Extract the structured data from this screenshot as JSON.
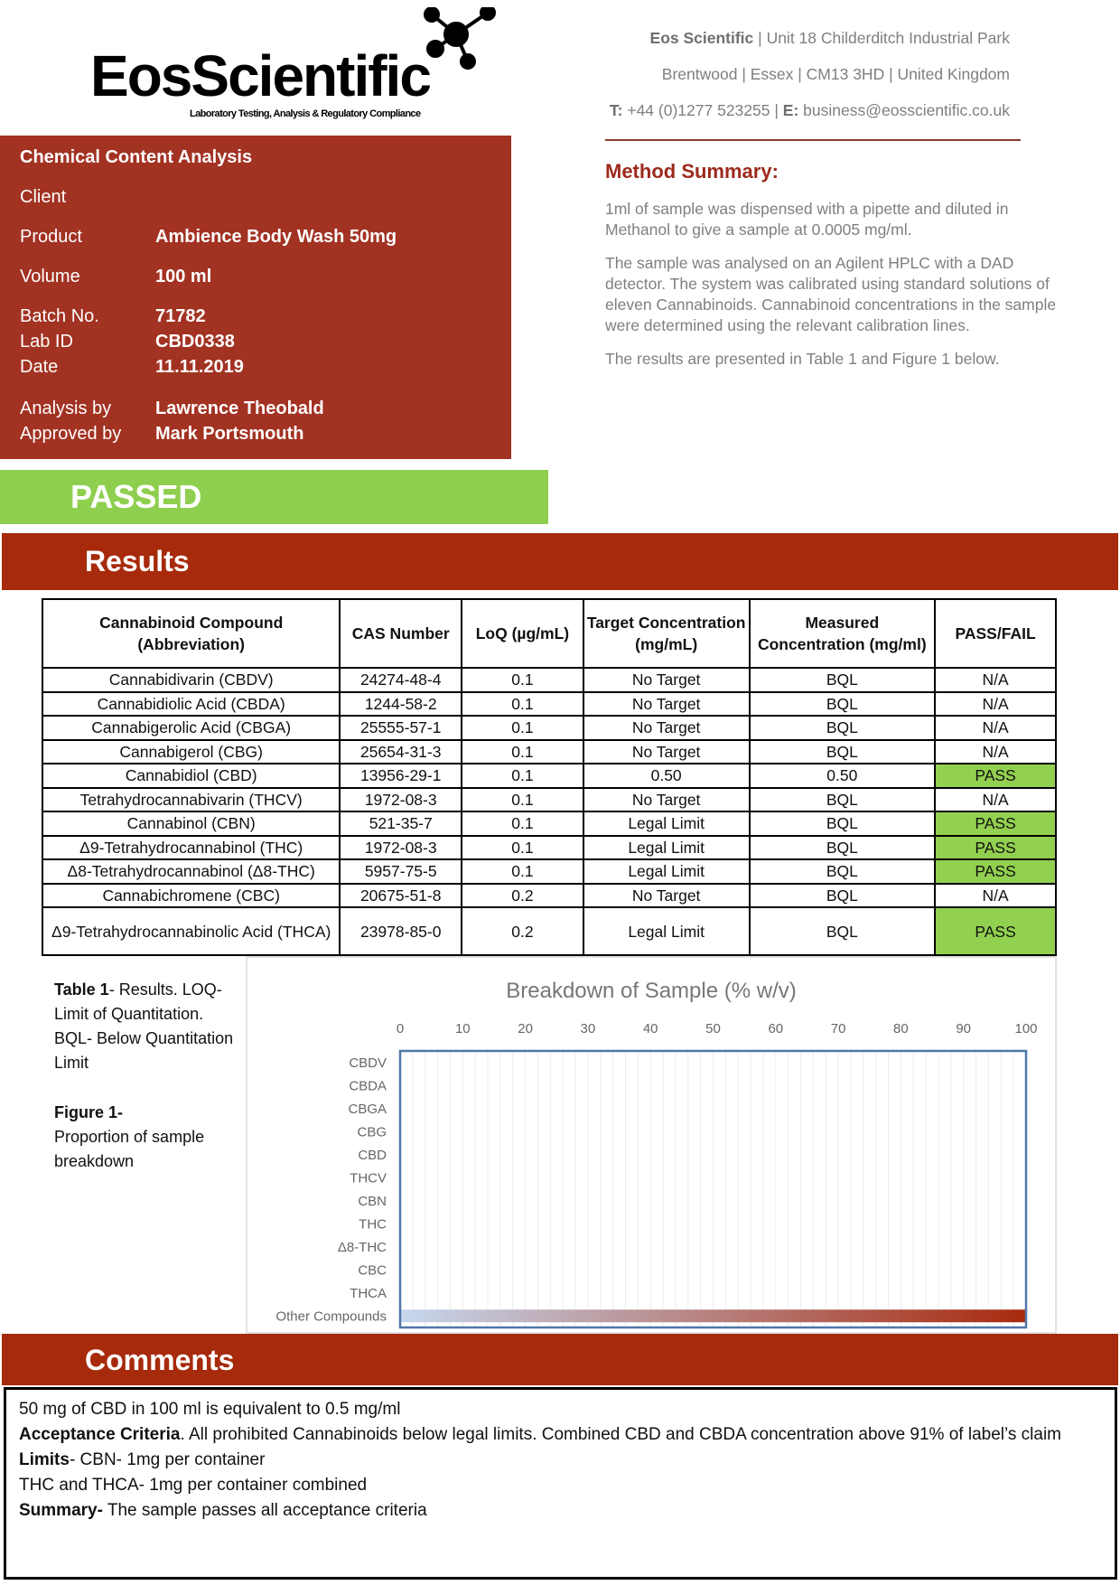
{
  "logo": {
    "name": "EosScientific",
    "tagline": "Laboratory Testing, Analysis & Regulatory Compliance"
  },
  "header": {
    "company": "Eos Scientific",
    "address1": "| Unit 18 Childerditch Industrial Park",
    "address2": "Brentwood | Essex | CM13 3HD | United Kingdom",
    "phone_label": "T:",
    "phone": "+44 (0)1277 523255 |",
    "email_label": "E:",
    "email": "business@eosscientific.co.uk"
  },
  "method": {
    "title": "Method Summary:",
    "p1": "1ml of sample was dispensed with a pipette and diluted in Methanol to give a sample at 0.0005 mg/ml.",
    "p2": "The sample was analysed on an Agilent HPLC with a DAD detector. The system was calibrated using standard solutions of eleven Cannabinoids. Cannabinoid concentrations in the sample were determined using the relevant calibration lines.",
    "p3": "The results are presented in Table 1 and Figure 1 below."
  },
  "info": {
    "title": "Chemical Content Analysis",
    "client_label": "Client",
    "client": "",
    "product_label": "Product",
    "product": "Ambience Body Wash 50mg",
    "volume_label": "Volume",
    "volume": "100 ml",
    "batch_label": "Batch No.",
    "batch": "71782",
    "labid_label": "Lab ID",
    "labid": "CBD0338",
    "date_label": "Date",
    "date": "11.11.2019",
    "analysis_label": "Analysis by",
    "analysis": "Lawrence Theobald",
    "approved_label": "Approved by",
    "approved": "Mark Portsmouth"
  },
  "status": "PASSED",
  "status_color": "#8fcf4f",
  "results": {
    "title": "Results",
    "headers": [
      "Cannabinoid Compound (Abbreviation)",
      "CAS Number",
      "LoQ (µg/mL)",
      "Target Concentration (mg/mL)",
      "Measured Concentration (mg/ml)",
      "PASS/FAIL"
    ],
    "rows": [
      [
        "Cannabidivarin (CBDV)",
        "24274-48-4",
        "0.1",
        "No Target",
        "BQL",
        "N/A"
      ],
      [
        "Cannabidiolic Acid (CBDA)",
        "1244-58-2",
        "0.1",
        "No Target",
        "BQL",
        "N/A"
      ],
      [
        "Cannabigerolic Acid (CBGA)",
        "25555-57-1",
        "0.1",
        "No Target",
        "BQL",
        "N/A"
      ],
      [
        "Cannabigerol (CBG)",
        "25654-31-3",
        "0.1",
        "No Target",
        "BQL",
        "N/A"
      ],
      [
        "Cannabidiol (CBD)",
        "13956-29-1",
        "0.1",
        "0.50",
        "0.50",
        "PASS"
      ],
      [
        "Tetrahydrocannabivarin (THCV)",
        "1972-08-3",
        "0.1",
        "No Target",
        "BQL",
        "N/A"
      ],
      [
        "Cannabinol (CBN)",
        "521-35-7",
        "0.1",
        "Legal Limit",
        "BQL",
        "PASS"
      ],
      [
        "Δ9-Tetrahydrocannabinol (THC)",
        "1972-08-3",
        "0.1",
        "Legal Limit",
        "BQL",
        "PASS"
      ],
      [
        "Δ8-Tetrahydrocannabinol (Δ8-THC)",
        "5957-75-5",
        "0.1",
        "Legal Limit",
        "BQL",
        "PASS"
      ],
      [
        "Cannabichromene (CBC)",
        "20675-51-8",
        "0.2",
        "No Target",
        "BQL",
        "N/A"
      ],
      [
        "Δ9-Tetrahydrocannabinolic Acid (THCA)",
        "23978-85-0",
        "0.2",
        "Legal Limit",
        "BQL",
        "PASS"
      ]
    ],
    "pass_color": "#92d050"
  },
  "captions": {
    "table_bold": "Table 1",
    "table_text": "- Results. LOQ-Limit of Quantitation. BQL- Below Quantitation Limit",
    "figure_bold": "Figure 1-",
    "figure_text": "Proportion of sample breakdown"
  },
  "chart_data": {
    "type": "bar",
    "orientation": "horizontal",
    "title": "Breakdown of Sample (% w/v)",
    "categories": [
      "CBDV",
      "CBDA",
      "CBGA",
      "CBG",
      "CBD",
      "THCV",
      "CBN",
      "THC",
      "Δ8-THC",
      "CBC",
      "THCA",
      "Other Compounds"
    ],
    "values": [
      0,
      0,
      0,
      0,
      0.05,
      0,
      0,
      0,
      0,
      0,
      0,
      99.95
    ],
    "xlim": [
      0,
      100
    ],
    "xticks": [
      0,
      10,
      20,
      30,
      40,
      50,
      60,
      70,
      80,
      90,
      100
    ],
    "xaxis_position": "top",
    "grid": true,
    "bar_gradient": [
      "#c6d7ee",
      "#a82a0e"
    ]
  },
  "comments": {
    "title": "Comments",
    "line1": "50 mg of CBD in 100 ml is equivalent to 0.5 mg/ml",
    "acc_bold": "Acceptance Criteria",
    "acc_text": ". All prohibited Cannabinoids below legal limits. Combined CBD and CBDA concentration above 91% of label’s claim",
    "limits_bold": "Limits",
    "limits_text": "- CBN- 1mg per container",
    "line4": "THC and THCA- 1mg per container combined",
    "summary_bold": "Summary-",
    "summary_text": " The sample passes all acceptance criteria"
  }
}
